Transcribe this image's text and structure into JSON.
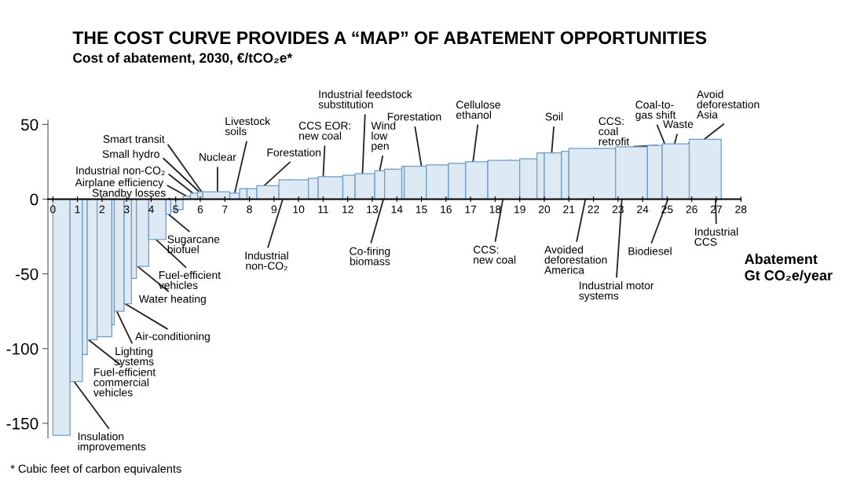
{
  "chart_data": {
    "type": "histogram",
    "title": "THE COST CURVE PROVIDES A “MAP” OF ABATEMENT OPPORTUNITIES",
    "subtitle": "Cost of abatement, 2030, €/tCO₂e*",
    "xlabel": "Abatement\nGt CO₂e/year",
    "bins": [
      0,
      0.7,
      1.2,
      1.4,
      1.8,
      2.4,
      2.5,
      2.9,
      3.2,
      3.4,
      3.9,
      4.6,
      4.8,
      5.0,
      5.3,
      5.6,
      5.9,
      6.1,
      7.2,
      7.6,
      7.9,
      8.3,
      9.2,
      10.4,
      10.8,
      11.8,
      12.3,
      13.1,
      13.5,
      14.2,
      14.3,
      15.2,
      16.1,
      16.8,
      17.7,
      19.0,
      19.7,
      20.0,
      20.7,
      21.0,
      22.9,
      24.2,
      24.8,
      25.9,
      27.2
    ],
    "values": [
      -158,
      -122,
      -104,
      -94,
      -92,
      -84,
      -75,
      -70,
      -53,
      -45,
      -27,
      -10,
      -8,
      -7,
      2,
      4,
      5,
      5,
      4,
      7,
      7,
      9,
      13,
      14,
      15,
      16,
      17,
      19,
      20,
      22,
      22,
      23,
      24,
      25,
      26,
      27,
      31,
      31,
      32,
      34,
      35,
      36,
      37,
      40
    ],
    "color": "#dde9f3",
    "xlim": [
      -0.2,
      28
    ],
    "ylim": [
      -160,
      53
    ],
    "xticks": [
      0,
      1,
      2,
      3,
      4,
      5,
      6,
      7,
      8,
      9,
      10,
      11,
      12,
      13,
      14,
      15,
      16,
      17,
      18,
      19,
      20,
      21,
      22,
      23,
      24,
      25,
      26,
      27,
      28
    ],
    "yticks": [
      -150,
      -100,
      -50,
      0,
      50
    ],
    "grid": false,
    "annotations": [
      {
        "text": "Insulation\nimprovements",
        "x": 0.86,
        "y": -122
      },
      {
        "text": "Fuel-efficient\ncommercial\nvehicles",
        "x": 1.44,
        "y": -94
      },
      {
        "text": "Lighting\nsystems",
        "x": 2.6,
        "y": -75
      },
      {
        "text": "Air-conditioning",
        "x": 2.95,
        "y": -70
      },
      {
        "text": "Water heating",
        "x": 3.45,
        "y": -45
      },
      {
        "text": "Fuel-efficient\nvehicles",
        "x": 4.2,
        "y": -27
      },
      {
        "text": "Sugarcane\nbiofuel",
        "x": 4.7,
        "y": -10
      },
      {
        "text": "Standby losses",
        "x": 5.1,
        "y": -7
      },
      {
        "text": "Airplane efficiency",
        "x": 5.45,
        "y": 2
      },
      {
        "text": "Industrial non-CO₂",
        "x": 5.7,
        "y": 4
      },
      {
        "text": "Small hydro",
        "x": 5.95,
        "y": 5
      },
      {
        "text": "Smart transit",
        "x": 6.05,
        "y": 5
      },
      {
        "text": "Nuclear",
        "x": 6.7,
        "y": 5
      },
      {
        "text": "Livestock\nsoils",
        "x": 7.4,
        "y": 4
      },
      {
        "text": "Forestation",
        "x": 8.6,
        "y": 9
      },
      {
        "text": "Industrial\nnon-CO₂",
        "x": 9.6,
        "y": 13
      },
      {
        "text": "CCS EOR:\nnew coal",
        "x": 11.0,
        "y": 15
      },
      {
        "text": "Industrial feedstock\nsubstitution",
        "x": 12.6,
        "y": 17
      },
      {
        "text": "Wind\nlow\npen",
        "x": 13.3,
        "y": 19
      },
      {
        "text": "Co-firing\nbiomass",
        "x": 13.8,
        "y": 20
      },
      {
        "text": "Forestation",
        "x": 15.0,
        "y": 22
      },
      {
        "text": "Cellulose\nethanol",
        "x": 17.1,
        "y": 25
      },
      {
        "text": "CCS:\nnew coal",
        "x": 18.6,
        "y": 26
      },
      {
        "text": "Soil",
        "x": 20.3,
        "y": 31
      },
      {
        "text": "Avoided\ndeforestation\nAmerica",
        "x": 22.1,
        "y": 34
      },
      {
        "text": "Industrial motor\nsystems",
        "x": 23.3,
        "y": 35
      },
      {
        "text": "CCS:\ncoal\nretrofit",
        "x": 24.6,
        "y": 36
      },
      {
        "text": "Coal-to-\ngas shift",
        "x": 24.9,
        "y": 37
      },
      {
        "text": "Waste",
        "x": 25.3,
        "y": 37
      },
      {
        "text": "Biodiesel",
        "x": 25.95,
        "y": 40
      },
      {
        "text": "Industrial\nCCS",
        "x": 26.9,
        "y": 40
      },
      {
        "text": "Avoid\ndeforestation\nAsia",
        "x": 26.5,
        "y": 40
      },
      "* Cubic feet of carbon equivalents"
    ]
  }
}
